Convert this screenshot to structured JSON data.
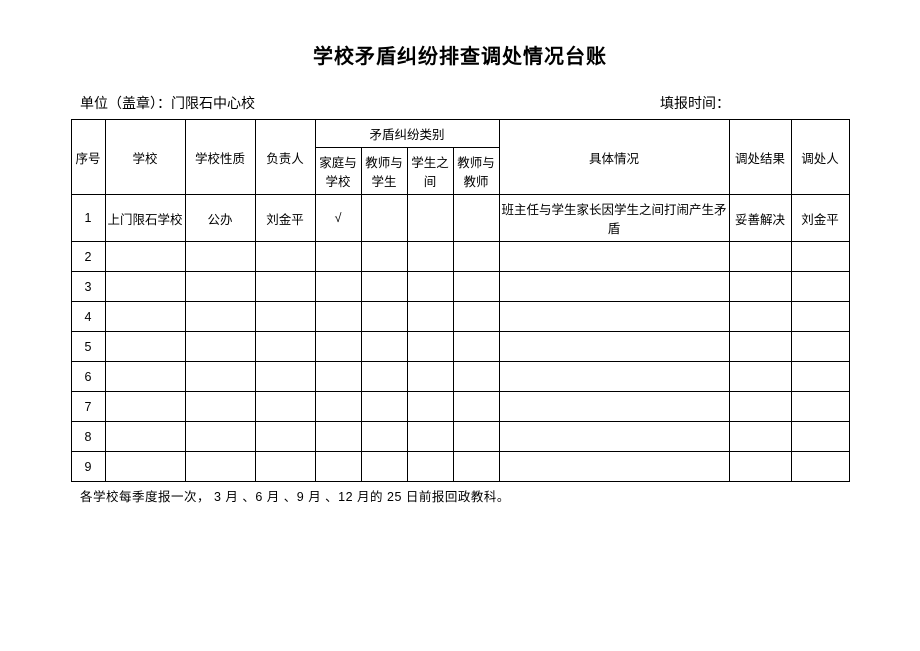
{
  "title": "学校矛盾纠纷排查调处情况台账",
  "meta": {
    "unit_label": "单位（盖章）：",
    "unit_value": "门限石中心校",
    "report_time_label": "填报时间：",
    "report_time_value": ""
  },
  "columns": {
    "seq": "序号",
    "school": "学校",
    "nature": "学校性质",
    "charge": "负责人",
    "category_group": "矛盾纠纷类别",
    "cat1": "家庭与学校",
    "cat2": "教师与学生",
    "cat3": "学生之间",
    "cat4": "教师与教师",
    "detail": "具体情况",
    "result": "调处结果",
    "handler": "调处人"
  },
  "rows": [
    {
      "seq": "1",
      "school": "上门限石学校",
      "nature": "公办",
      "charge": "刘金平",
      "c1": "√",
      "c2": "",
      "c3": "",
      "c4": "",
      "detail": "班主任与学生家长因学生之间打闹产生矛盾",
      "result": "妥善解决",
      "handler": "刘金平"
    },
    {
      "seq": "2",
      "school": "",
      "nature": "",
      "charge": "",
      "c1": "",
      "c2": "",
      "c3": "",
      "c4": "",
      "detail": "",
      "result": "",
      "handler": ""
    },
    {
      "seq": "3",
      "school": "",
      "nature": "",
      "charge": "",
      "c1": "",
      "c2": "",
      "c3": "",
      "c4": "",
      "detail": "",
      "result": "",
      "handler": ""
    },
    {
      "seq": "4",
      "school": "",
      "nature": "",
      "charge": "",
      "c1": "",
      "c2": "",
      "c3": "",
      "c4": "",
      "detail": "",
      "result": "",
      "handler": ""
    },
    {
      "seq": "5",
      "school": "",
      "nature": "",
      "charge": "",
      "c1": "",
      "c2": "",
      "c3": "",
      "c4": "",
      "detail": "",
      "result": "",
      "handler": ""
    },
    {
      "seq": "6",
      "school": "",
      "nature": "",
      "charge": "",
      "c1": "",
      "c2": "",
      "c3": "",
      "c4": "",
      "detail": "",
      "result": "",
      "handler": ""
    },
    {
      "seq": "7",
      "school": "",
      "nature": "",
      "charge": "",
      "c1": "",
      "c2": "",
      "c3": "",
      "c4": "",
      "detail": "",
      "result": "",
      "handler": ""
    },
    {
      "seq": "8",
      "school": "",
      "nature": "",
      "charge": "",
      "c1": "",
      "c2": "",
      "c3": "",
      "c4": "",
      "detail": "",
      "result": "",
      "handler": ""
    },
    {
      "seq": "9",
      "school": "",
      "nature": "",
      "charge": "",
      "c1": "",
      "c2": "",
      "c3": "",
      "c4": "",
      "detail": "",
      "result": "",
      "handler": ""
    }
  ],
  "footnote": "各学校每季度报一次，   3 月 、6 月 、9 月 、12 月的 25 日前报回政教科。"
}
